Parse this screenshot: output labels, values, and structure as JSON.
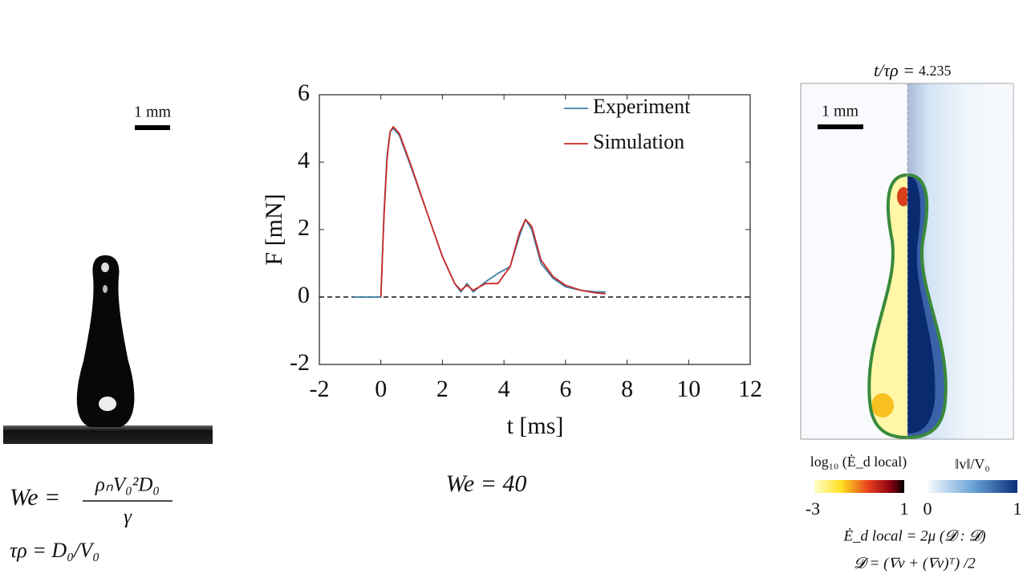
{
  "left_panel": {
    "scale_bar": "1 mm",
    "we_lhs": "We =",
    "we_numerator": "ρₙV₀²D₀",
    "we_denominator": "γ",
    "tau_formula": "τρ = D₀/V₀"
  },
  "chart_data": {
    "type": "line",
    "x": [
      -0.9,
      -0.5,
      0,
      0.1,
      0.2,
      0.3,
      0.4,
      0.6,
      0.8,
      1,
      1.5,
      2,
      2.4,
      2.6,
      2.8,
      3,
      3.4,
      3.8,
      4.2,
      4.5,
      4.7,
      4.9,
      5.2,
      5.6,
      6,
      6.5,
      7,
      7.3
    ],
    "series": [
      {
        "name": "Experiment",
        "color": "#3b7fa6",
        "values": [
          0,
          0,
          0,
          2.5,
          4.2,
          4.9,
          5.0,
          4.8,
          4.3,
          3.8,
          2.5,
          1.2,
          0.4,
          0.15,
          0.4,
          0.15,
          0.45,
          0.7,
          0.9,
          1.8,
          2.3,
          2.0,
          1.0,
          0.55,
          0.3,
          0.2,
          0.15,
          0.15
        ]
      },
      {
        "name": "Simulation",
        "color": "#cc2a2a",
        "values": [
          null,
          null,
          0,
          2.4,
          4.1,
          4.9,
          5.05,
          4.85,
          4.35,
          3.85,
          2.5,
          1.2,
          0.4,
          0.2,
          0.35,
          0.2,
          0.4,
          0.4,
          0.9,
          1.9,
          2.3,
          2.1,
          1.1,
          0.6,
          0.35,
          0.2,
          0.12,
          0.1
        ]
      }
    ],
    "xlim": [
      -2,
      12
    ],
    "xticks": [
      -2,
      0,
      2,
      4,
      6,
      8,
      10,
      12
    ],
    "ylim": [
      -2,
      6
    ],
    "yticks": [
      -2,
      0,
      2,
      4,
      6
    ],
    "reference_line": 0,
    "xlabel": "t [ms]",
    "ylabel": "F [mN]",
    "caption": "We = 40",
    "legend": "top-right"
  },
  "right_panel": {
    "title_lhs": "t/τρ =",
    "title_value": "4.235",
    "scale_bar": "1 mm",
    "colorbar_left": {
      "label": "log₁₀ (Ė_d local)",
      "ticks": [
        -3,
        1
      ]
    },
    "colorbar_right": {
      "label": "‖v‖/V₀",
      "ticks": [
        0,
        1
      ]
    },
    "formula_energy": "Ė_d local = 2μ (𝓓 : 𝓓)",
    "formula_d": "𝓓 = (∇v + (∇v)ᵀ) /2"
  }
}
